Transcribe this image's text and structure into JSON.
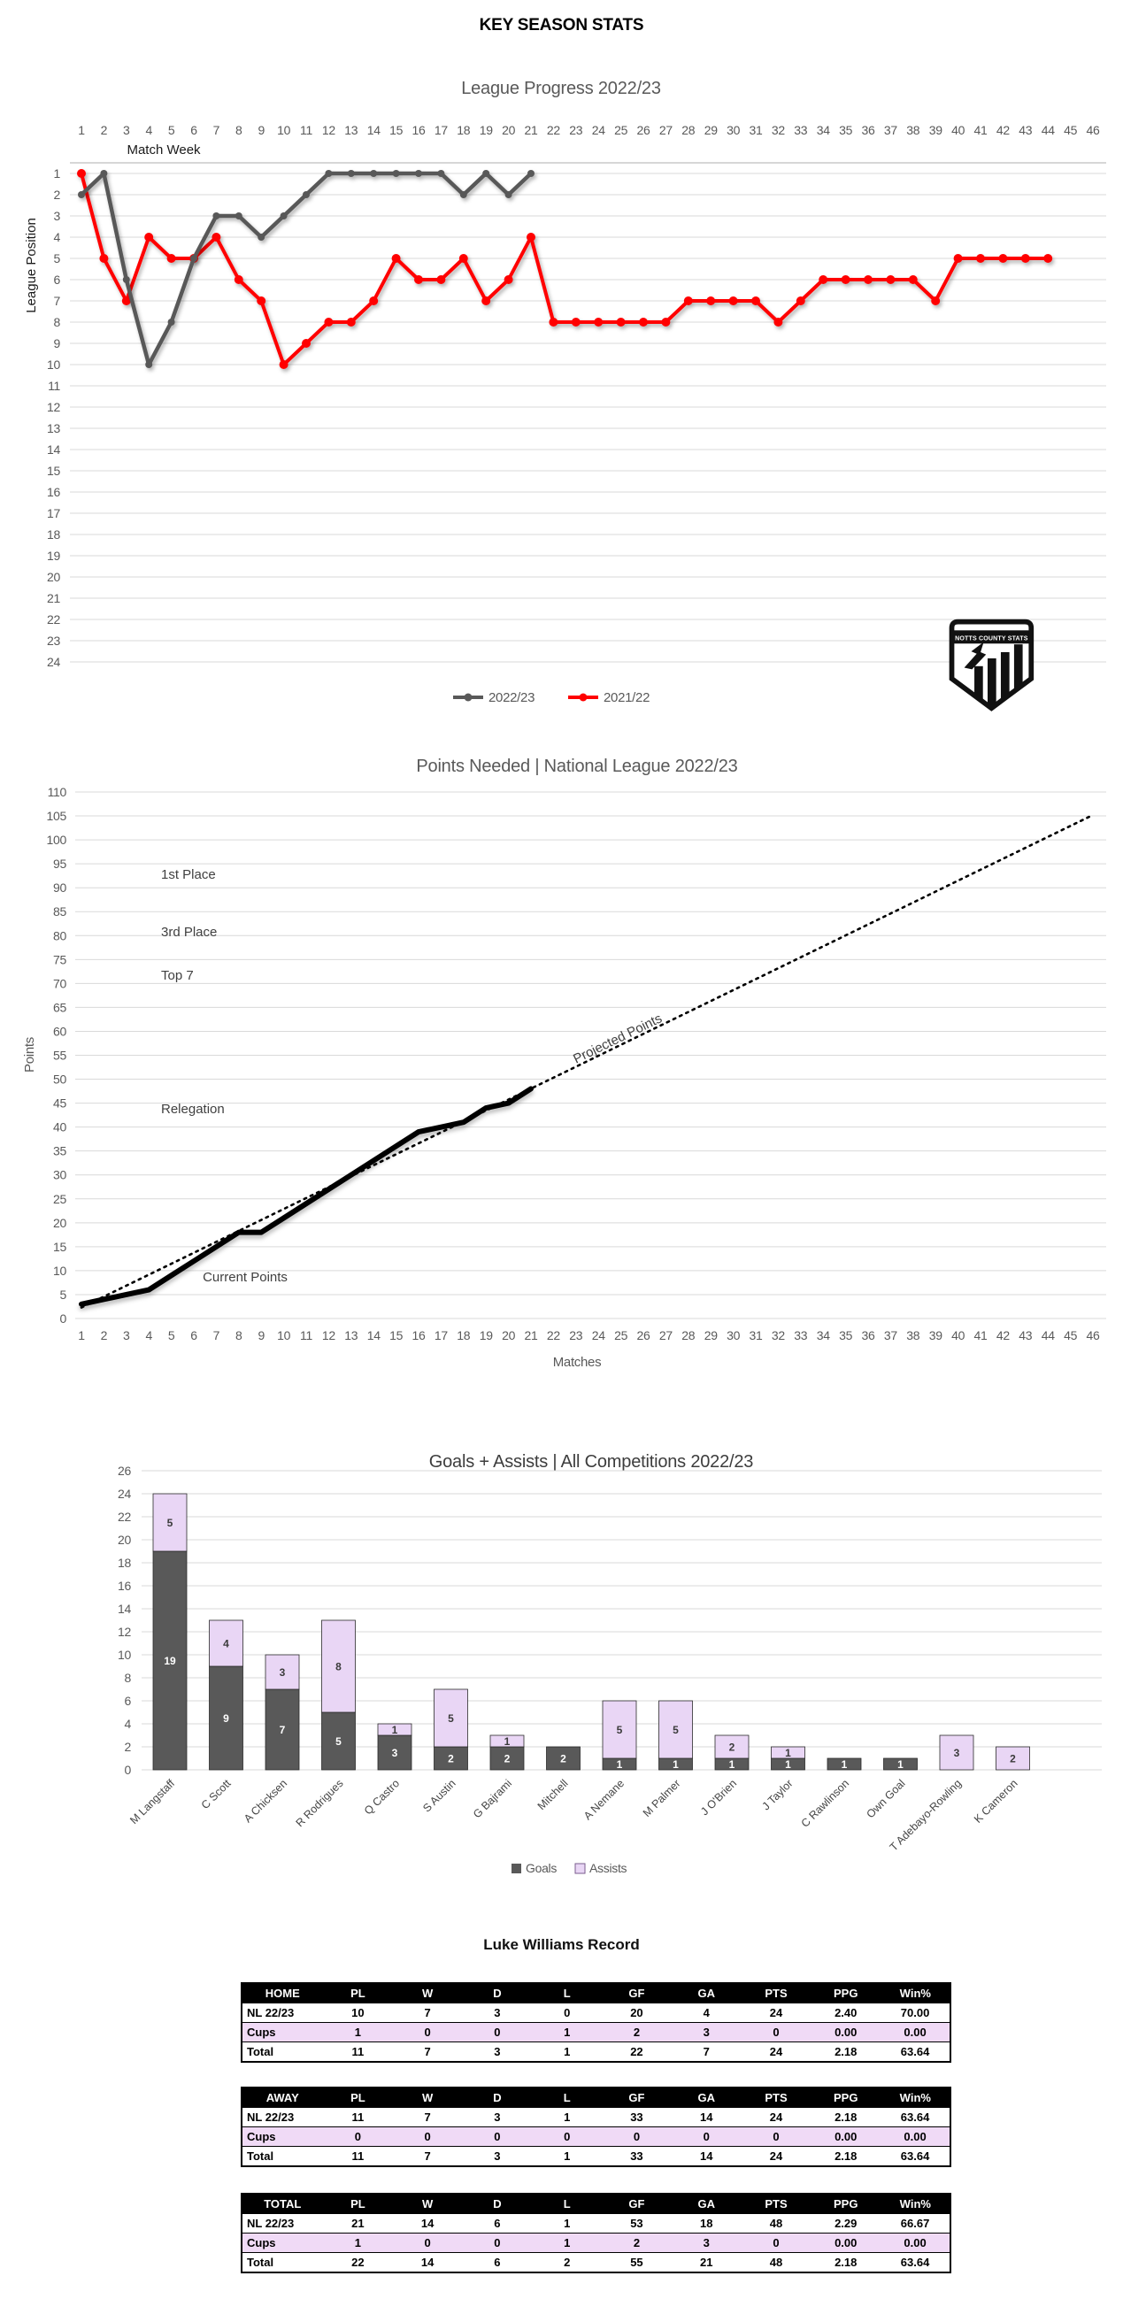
{
  "header": {
    "title": "KEY SEASON STATS"
  },
  "badge": {
    "title": "NOTTS COUNTY STATS"
  },
  "colors": {
    "grid": "#D9D9D9",
    "axis_text": "#595959",
    "goals": "#595959",
    "assists": "#E9D6F5",
    "cups_row": "#F0DAF6",
    "first_place": "#70AD47",
    "third_place": "#5B9BD5",
    "top7": "#FFC000",
    "relegation": "#FF0000"
  },
  "chart_data": [
    {
      "type": "line",
      "title": "League Progress 2022/23",
      "x_axis": {
        "label": "Match Week",
        "min": 1,
        "max": 46,
        "step": 1
      },
      "y_axis": {
        "label": "League Position",
        "min": 1,
        "max": 24,
        "step": 1,
        "inverted": true
      },
      "legend_position": "bottom",
      "series": [
        {
          "name": "2022/23",
          "color": "#595959",
          "values": [
            2,
            1,
            6,
            10,
            8,
            5,
            3,
            3,
            4,
            3,
            2,
            1,
            1,
            1,
            1,
            1,
            1,
            2,
            1,
            2,
            1
          ]
        },
        {
          "name": "2021/22",
          "color": "#FF0000",
          "values": [
            1,
            5,
            7,
            4,
            5,
            5,
            4,
            6,
            7,
            10,
            9,
            8,
            8,
            7,
            5,
            6,
            6,
            5,
            7,
            6,
            4,
            8,
            8,
            8,
            8,
            8,
            8,
            7,
            7,
            7,
            7,
            8,
            7,
            6,
            6,
            6,
            6,
            6,
            7,
            5,
            5,
            5,
            5,
            5
          ]
        }
      ]
    },
    {
      "type": "line",
      "title": "Points Needed | National League 2022/23",
      "x_axis": {
        "label": "Matches",
        "min": 1,
        "max": 46,
        "step": 1
      },
      "y_axis": {
        "label": "Points",
        "min": 0,
        "max": 110,
        "step": 5
      },
      "reference_lines": [
        {
          "label": "1st Place",
          "value": 90,
          "color": "#70AD47"
        },
        {
          "label": "3rd Place",
          "value": 78,
          "color": "#5B9BD5"
        },
        {
          "label": "Top 7",
          "value": 69,
          "color": "#FFC000"
        },
        {
          "label": "Relegation",
          "value": 41,
          "color": "#FF0000"
        }
      ],
      "series": [
        {
          "name": "Current Points",
          "style": "solid",
          "color": "#000000",
          "values": [
            3,
            4,
            5,
            6,
            9,
            12,
            15,
            18,
            18,
            21,
            24,
            27,
            30,
            33,
            36,
            39,
            40,
            41,
            44,
            45,
            48
          ]
        },
        {
          "name": "Projected Points",
          "style": "dotted",
          "color": "#000000",
          "points": [
            [
              1,
              2.3
            ],
            [
              46,
              105.2
            ]
          ]
        }
      ],
      "annotations": [
        {
          "text": "Current Points"
        },
        {
          "text": "Projected Points"
        }
      ]
    },
    {
      "type": "stacked-bar",
      "title": "Goals + Assists | All Competitions 2022/23",
      "y_axis": {
        "min": 0,
        "max": 26,
        "step": 2
      },
      "categories": [
        "M Langstaff",
        "C Scott",
        "A Chicksen",
        "R Rodrigues",
        "Q Castro",
        "S Austin",
        "G Bajrami",
        "Mitchell",
        "A Nemane",
        "M Palmer",
        "J O'Brien",
        "J Taylor",
        "C Rawlinson",
        "Own Goal",
        "T Adebayo-Rowling",
        "K Cameron"
      ],
      "series": [
        {
          "name": "Goals",
          "color": "#595959",
          "values": [
            19,
            9,
            7,
            5,
            3,
            2,
            2,
            2,
            1,
            1,
            1,
            1,
            1,
            1,
            0,
            0
          ]
        },
        {
          "name": "Assists",
          "color": "#E9D6F5",
          "values": [
            5,
            4,
            3,
            8,
            1,
            5,
            1,
            0,
            5,
            5,
            2,
            1,
            0,
            0,
            3,
            2
          ]
        }
      ],
      "legend_position": "bottom"
    }
  ],
  "record": {
    "title": "Luke Williams Record",
    "columns": [
      "PL",
      "W",
      "D",
      "L",
      "GF",
      "GA",
      "PTS",
      "PPG",
      "Win%"
    ],
    "tables": [
      {
        "name": "HOME",
        "rows": [
          {
            "label": "NL 22/23",
            "highlight": false,
            "values": [
              "10",
              "7",
              "3",
              "0",
              "20",
              "4",
              "24",
              "2.40",
              "70.00"
            ]
          },
          {
            "label": "Cups",
            "highlight": true,
            "values": [
              "1",
              "0",
              "0",
              "1",
              "2",
              "3",
              "0",
              "0.00",
              "0.00"
            ]
          },
          {
            "label": "Total",
            "highlight": false,
            "values": [
              "11",
              "7",
              "3",
              "1",
              "22",
              "7",
              "24",
              "2.18",
              "63.64"
            ]
          }
        ]
      },
      {
        "name": "AWAY",
        "rows": [
          {
            "label": "NL 22/23",
            "highlight": false,
            "values": [
              "11",
              "7",
              "3",
              "1",
              "33",
              "14",
              "24",
              "2.18",
              "63.64"
            ]
          },
          {
            "label": "Cups",
            "highlight": true,
            "values": [
              "0",
              "0",
              "0",
              "0",
              "0",
              "0",
              "0",
              "0.00",
              "0.00"
            ]
          },
          {
            "label": "Total",
            "highlight": false,
            "values": [
              "11",
              "7",
              "3",
              "1",
              "33",
              "14",
              "24",
              "2.18",
              "63.64"
            ]
          }
        ]
      },
      {
        "name": "TOTAL",
        "rows": [
          {
            "label": "NL 22/23",
            "highlight": false,
            "values": [
              "21",
              "14",
              "6",
              "1",
              "53",
              "18",
              "48",
              "2.29",
              "66.67"
            ]
          },
          {
            "label": "Cups",
            "highlight": true,
            "values": [
              "1",
              "0",
              "0",
              "1",
              "2",
              "3",
              "0",
              "0.00",
              "0.00"
            ]
          },
          {
            "label": "Total",
            "highlight": false,
            "values": [
              "22",
              "14",
              "6",
              "2",
              "55",
              "21",
              "48",
              "2.18",
              "63.64"
            ]
          }
        ]
      }
    ]
  }
}
